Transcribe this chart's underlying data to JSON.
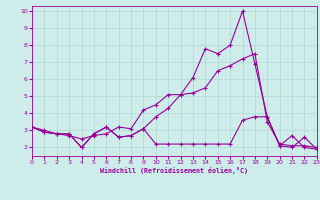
{
  "xlabel": "Windchill (Refroidissement éolien,°C)",
  "background_color": "#cdecea",
  "grid_color": "#aed8d5",
  "line_color": "#990099",
  "x_min": 0,
  "x_max": 23,
  "y_min": 1.5,
  "y_max": 10.3,
  "yticks": [
    2,
    3,
    4,
    5,
    6,
    7,
    8,
    9,
    10
  ],
  "xticks": [
    0,
    1,
    2,
    3,
    4,
    5,
    6,
    7,
    8,
    9,
    10,
    11,
    12,
    13,
    14,
    15,
    16,
    17,
    18,
    19,
    20,
    21,
    22,
    23
  ],
  "line1_x": [
    0,
    1,
    2,
    3,
    4,
    5,
    6,
    7,
    8,
    9,
    10,
    11,
    12,
    13,
    14,
    15,
    16,
    17,
    18,
    19,
    20,
    21,
    22,
    23
  ],
  "line1_y": [
    3.2,
    3.0,
    2.8,
    2.7,
    2.5,
    2.7,
    2.8,
    3.2,
    3.1,
    4.2,
    4.5,
    5.1,
    5.1,
    6.1,
    7.8,
    7.5,
    8.0,
    10.0,
    6.9,
    3.8,
    2.1,
    2.7,
    2.0,
    1.9
  ],
  "line2_x": [
    0,
    1,
    2,
    3,
    4,
    5,
    6,
    7,
    8,
    9,
    10,
    11,
    12,
    13,
    14,
    15,
    16,
    17,
    18,
    19,
    20,
    21,
    22,
    23
  ],
  "line2_y": [
    3.2,
    2.9,
    2.8,
    2.8,
    2.0,
    2.8,
    3.2,
    2.6,
    2.7,
    3.1,
    3.8,
    4.3,
    5.1,
    5.2,
    5.5,
    6.5,
    6.8,
    7.2,
    7.5,
    3.5,
    2.2,
    2.1,
    2.1,
    2.0
  ],
  "line3_x": [
    0,
    1,
    2,
    3,
    4,
    5,
    6,
    7,
    8,
    9,
    10,
    11,
    12,
    13,
    14,
    15,
    16,
    17,
    18,
    19,
    20,
    21,
    22,
    23
  ],
  "line3_y": [
    3.2,
    2.9,
    2.8,
    2.8,
    2.0,
    2.8,
    3.2,
    2.6,
    2.7,
    3.1,
    2.2,
    2.2,
    2.2,
    2.2,
    2.2,
    2.2,
    2.2,
    3.6,
    3.8,
    3.8,
    2.1,
    2.0,
    2.6,
    1.9
  ]
}
